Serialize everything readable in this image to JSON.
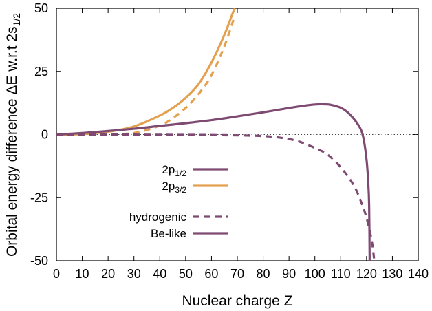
{
  "chart_data": {
    "type": "line",
    "xlabel": "Nuclear charge Z",
    "ylabel_parts": {
      "base": "Orbital energy difference ΔE w.r.t 2s",
      "subscript": "1/2"
    },
    "xlim": [
      0,
      140
    ],
    "ylim": [
      -50,
      50
    ],
    "xticks": [
      0,
      10,
      20,
      30,
      40,
      50,
      60,
      70,
      80,
      90,
      100,
      110,
      120,
      130,
      140
    ],
    "yticks": [
      50,
      25,
      0,
      -25,
      -50
    ],
    "xtick_labels": [
      "0",
      "10",
      "20",
      "30",
      "40",
      "50",
      "60",
      "70",
      "80",
      "90",
      "100",
      "110",
      "120",
      "130",
      "140"
    ],
    "ytick_labels": [
      "50",
      "25",
      "0",
      "-25",
      "-50"
    ],
    "grid": false,
    "zero_line": true,
    "colors": {
      "p12": "#7e4a72",
      "p32": "#e3a04f",
      "zero_line": "#444444"
    },
    "legend": {
      "placement": "left-center",
      "orbital_items": [
        {
          "label_base": "2p",
          "label_sub": "1/2",
          "color": "#7e4a72",
          "style": "solid"
        },
        {
          "label_base": "2p",
          "label_sub": "3/2",
          "color": "#e3a04f",
          "style": "solid"
        }
      ],
      "method_items": [
        {
          "label": "hydrogenic",
          "color": "#7e4a72",
          "style": "dashed"
        },
        {
          "label": "Be-like",
          "color": "#7e4a72",
          "style": "solid"
        }
      ]
    },
    "series": [
      {
        "color": "#e3a04f",
        "style": "solid",
        "points": [
          [
            0,
            0
          ],
          [
            10,
            0.2
          ],
          [
            20,
            1.1
          ],
          [
            30,
            3.2
          ],
          [
            40,
            7.5
          ],
          [
            45,
            10.5
          ],
          [
            50,
            14.5
          ],
          [
            55,
            20
          ],
          [
            60,
            28.5
          ],
          [
            65,
            39.5
          ],
          [
            68,
            47.5
          ],
          [
            69,
            50
          ]
        ]
      },
      {
        "color": "#e3a04f",
        "style": "dashed",
        "points": [
          [
            0,
            0
          ],
          [
            10,
            0.0
          ],
          [
            20,
            0.1
          ],
          [
            30,
            0.6
          ],
          [
            40,
            3.5
          ],
          [
            45,
            6.5
          ],
          [
            50,
            10.5
          ],
          [
            55,
            16
          ],
          [
            60,
            23.5
          ],
          [
            65,
            35
          ],
          [
            69,
            47
          ]
        ]
      },
      {
        "color": "#7e4a72",
        "style": "solid",
        "points": [
          [
            0,
            0
          ],
          [
            10,
            0.6
          ],
          [
            20,
            1.4
          ],
          [
            30,
            2.3
          ],
          [
            40,
            3.4
          ],
          [
            50,
            4.5
          ],
          [
            60,
            5.7
          ],
          [
            70,
            7.2
          ],
          [
            80,
            8.8
          ],
          [
            90,
            10.5
          ],
          [
            95,
            11.3
          ],
          [
            100,
            11.9
          ],
          [
            103,
            12.0
          ],
          [
            106,
            11.8
          ],
          [
            110,
            10.6
          ],
          [
            113,
            8.5
          ],
          [
            116,
            5.0
          ],
          [
            118,
            1.5
          ],
          [
            119,
            -2.5
          ],
          [
            120,
            -10
          ],
          [
            120.6,
            -18
          ],
          [
            121,
            -28
          ],
          [
            121.2,
            -50
          ]
        ]
      },
      {
        "color": "#7e4a72",
        "style": "dashed",
        "points": [
          [
            0,
            0
          ],
          [
            20,
            0.0
          ],
          [
            40,
            -0.1
          ],
          [
            60,
            -0.2
          ],
          [
            80,
            -0.6
          ],
          [
            90,
            -1.8
          ],
          [
            95,
            -3.2
          ],
          [
            100,
            -5.3
          ],
          [
            105,
            -8
          ],
          [
            110,
            -13
          ],
          [
            115,
            -20
          ],
          [
            118,
            -27
          ],
          [
            120,
            -33
          ],
          [
            122,
            -42
          ],
          [
            123,
            -50
          ]
        ]
      }
    ]
  }
}
